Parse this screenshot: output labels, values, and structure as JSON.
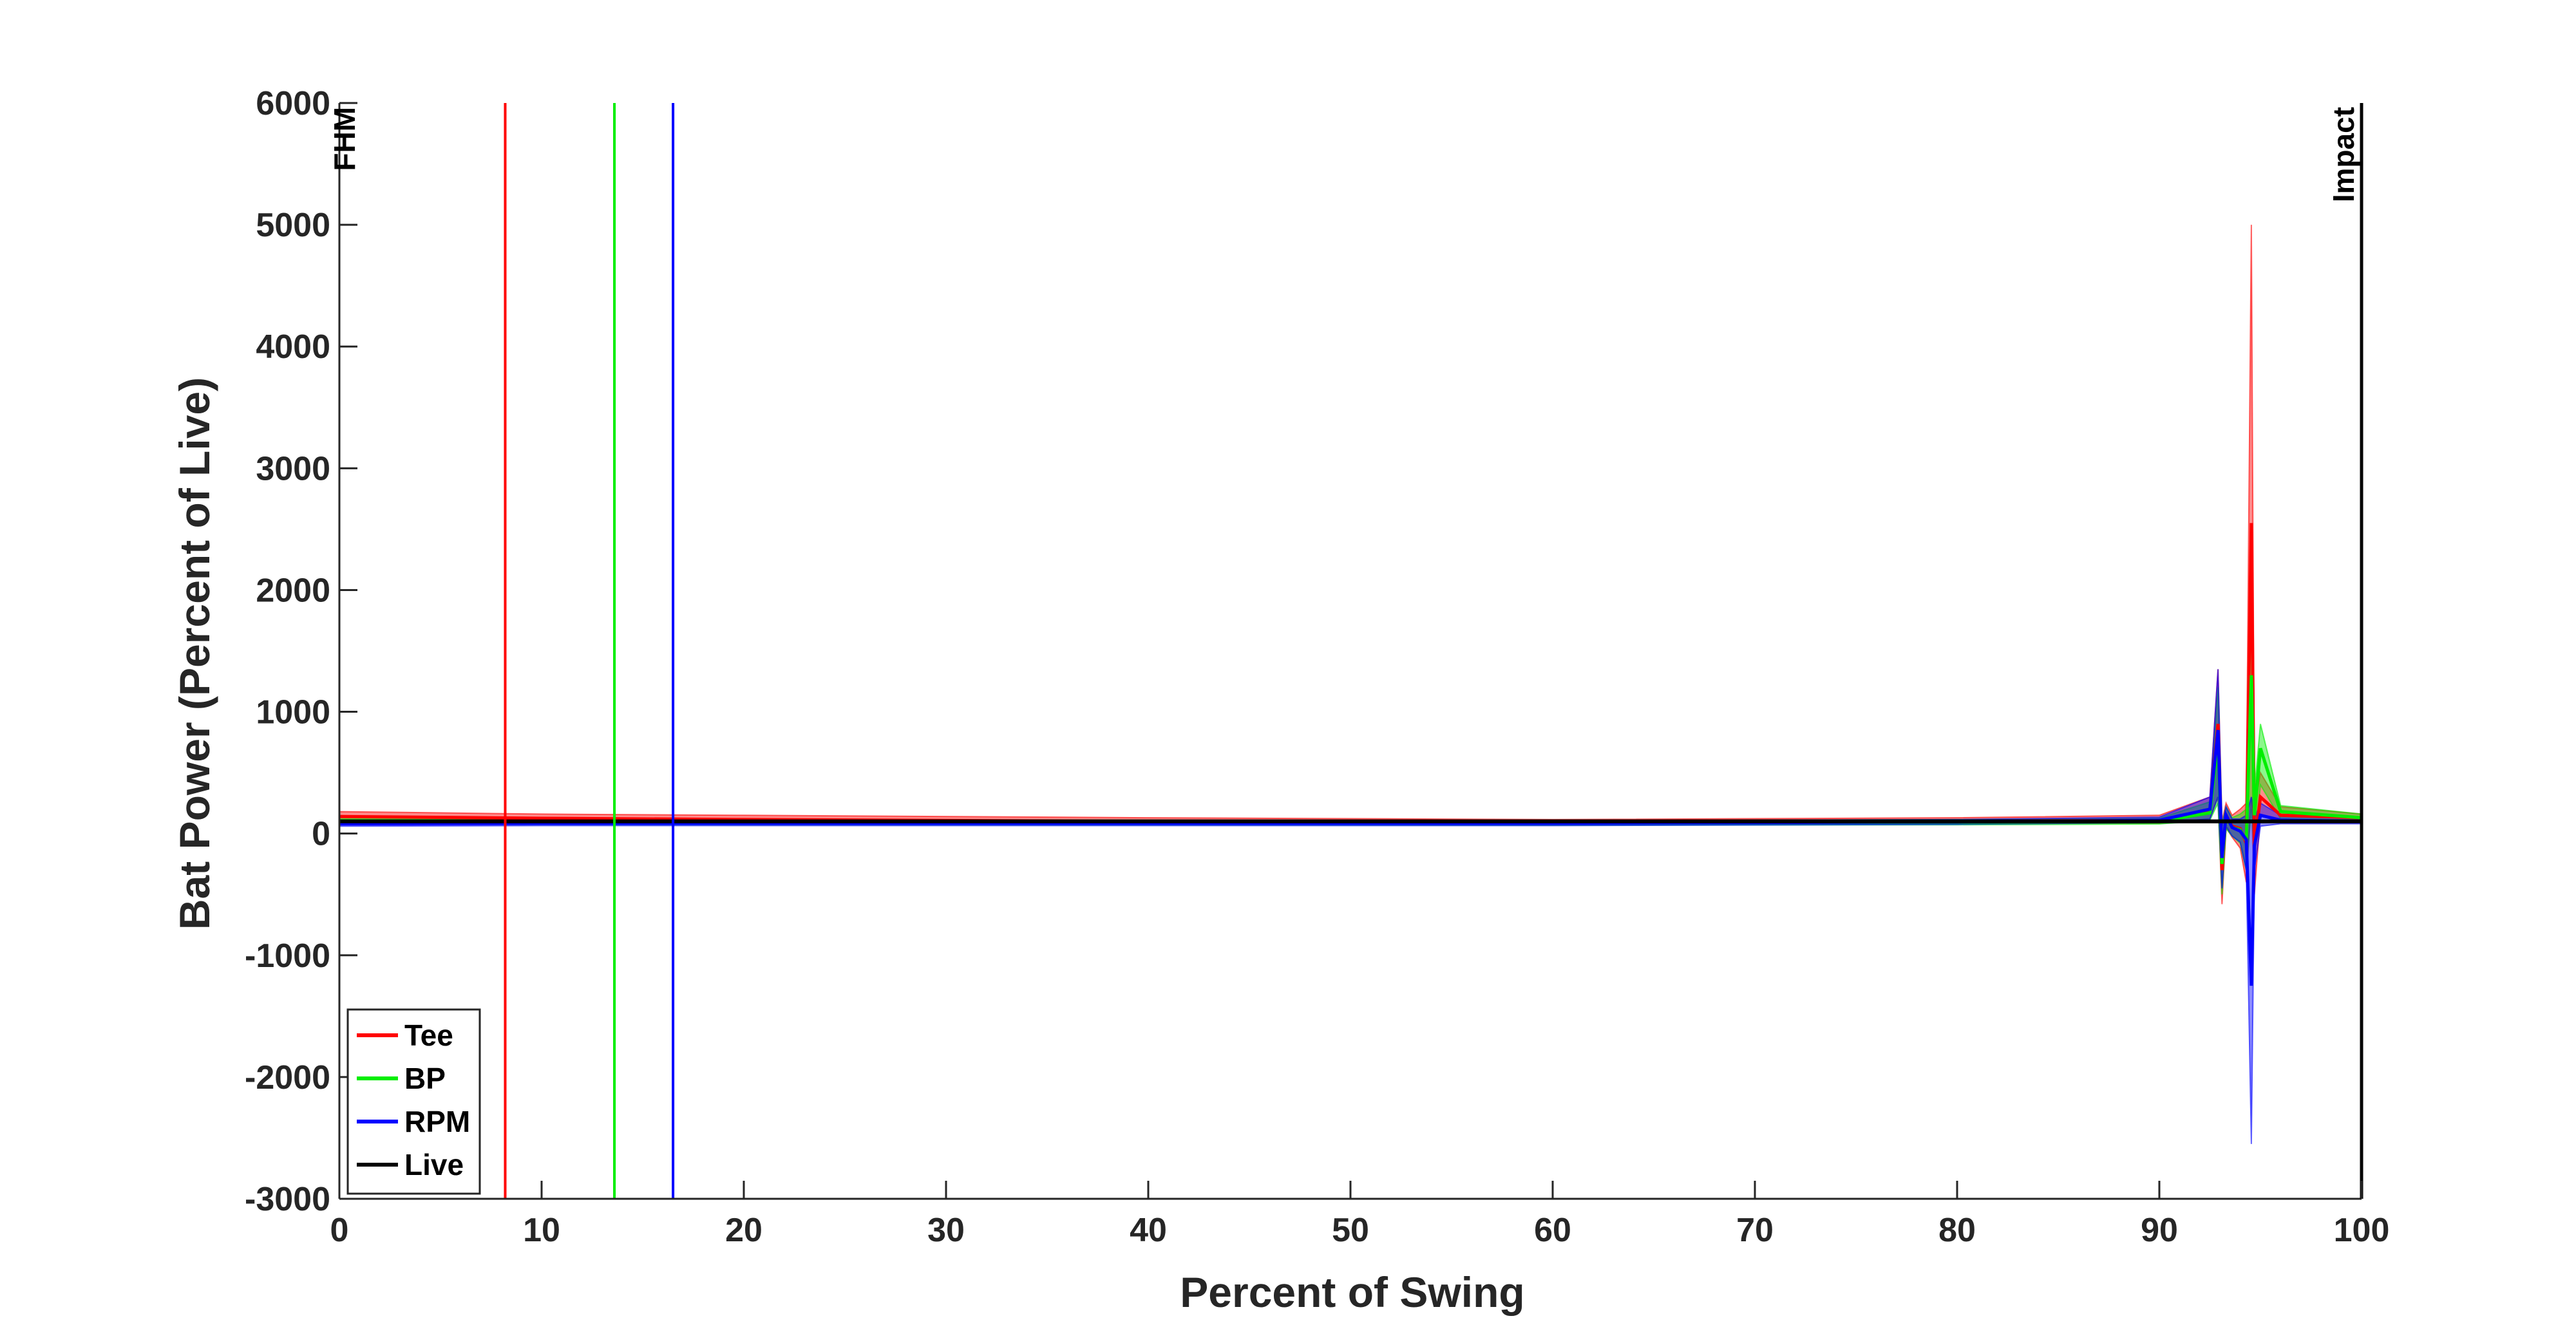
{
  "chart_data": {
    "type": "line",
    "title": "",
    "xlabel": "Percent of Swing",
    "ylabel": "Bat Power (Percent of Live)",
    "xlim": [
      0,
      100
    ],
    "ylim": [
      -3000,
      6000
    ],
    "xticks": [
      0,
      10,
      20,
      30,
      40,
      50,
      60,
      70,
      80,
      90,
      100
    ],
    "yticks": [
      -3000,
      -2000,
      -1000,
      0,
      1000,
      2000,
      3000,
      4000,
      5000,
      6000
    ],
    "grid": false,
    "legend_position": "bottom-left",
    "event_labels": [
      {
        "text": "FHM",
        "x": 0
      },
      {
        "text": "Impact",
        "x": 100
      }
    ],
    "series": [
      {
        "name": "Tee",
        "color": "#ff0000",
        "marker_line_x": 8.2,
        "x": [
          0,
          10,
          20,
          40,
          60,
          80,
          90,
          92.5,
          92.9,
          93.1,
          93.3,
          93.6,
          94.0,
          94.3,
          94.55,
          94.7,
          95.0,
          96,
          100
        ],
        "y": [
          140,
          125,
          115,
          100,
          90,
          100,
          110,
          190,
          900,
          -300,
          150,
          60,
          40,
          -80,
          2550,
          -100,
          300,
          150,
          130
        ],
        "band_upper": [
          180,
          160,
          150,
          130,
          115,
          130,
          150,
          300,
          1350,
          100,
          250,
          150,
          200,
          250,
          5000,
          200,
          500,
          220,
          160
        ],
        "band_lower": [
          100,
          95,
          90,
          80,
          75,
          80,
          85,
          120,
          300,
          -580,
          50,
          -30,
          -120,
          -400,
          300,
          -500,
          150,
          110,
          100
        ]
      },
      {
        "name": "BP",
        "color": "#00ee00",
        "marker_line_x": 13.6,
        "x": [
          0,
          10,
          20,
          40,
          60,
          80,
          90,
          92.5,
          92.9,
          93.1,
          93.3,
          93.6,
          94.0,
          94.3,
          94.55,
          94.7,
          95.0,
          96,
          100
        ],
        "y": [
          95,
          95,
          92,
          88,
          85,
          92,
          100,
          170,
          750,
          -250,
          140,
          50,
          30,
          -60,
          1300,
          150,
          700,
          180,
          130
        ],
        "band_upper": [
          120,
          118,
          115,
          110,
          105,
          115,
          125,
          260,
          1200,
          80,
          220,
          130,
          160,
          200,
          2400,
          350,
          900,
          230,
          160
        ],
        "band_lower": [
          75,
          75,
          72,
          70,
          68,
          72,
          78,
          110,
          250,
          -500,
          40,
          -20,
          -80,
          -300,
          200,
          -150,
          400,
          120,
          100
        ]
      },
      {
        "name": "RPM",
        "color": "#0000ff",
        "marker_line_x": 16.5,
        "x": [
          0,
          10,
          20,
          40,
          60,
          80,
          90,
          92.5,
          92.9,
          93.1,
          93.3,
          93.6,
          94.0,
          94.3,
          94.55,
          94.7,
          95.0,
          96,
          100
        ],
        "y": [
          80,
          85,
          85,
          85,
          85,
          95,
          110,
          200,
          850,
          -200,
          150,
          50,
          20,
          -50,
          -1250,
          -100,
          150,
          110,
          100
        ],
        "band_upper": [
          100,
          105,
          105,
          105,
          105,
          115,
          135,
          300,
          1350,
          60,
          220,
          120,
          120,
          150,
          300,
          120,
          250,
          150,
          130
        ],
        "band_lower": [
          60,
          65,
          65,
          65,
          65,
          75,
          90,
          120,
          300,
          -450,
          60,
          -20,
          -70,
          -300,
          -2550,
          -300,
          60,
          80,
          80
        ]
      },
      {
        "name": "Live",
        "color": "#000000",
        "x": [
          0,
          100
        ],
        "y": [
          100,
          100
        ]
      }
    ]
  }
}
